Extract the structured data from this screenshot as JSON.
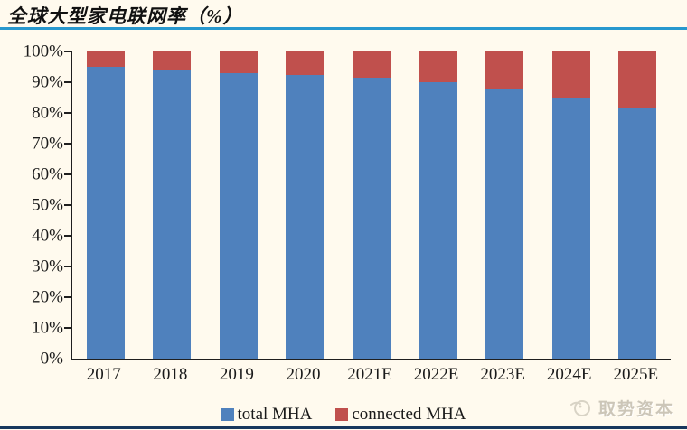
{
  "page": {
    "title": "全球大型家电联网率（%）",
    "watermark_text": "取势资本"
  },
  "colors": {
    "total_mha": "#4F81BD",
    "connected_mha": "#C0504D",
    "background": "#FFFAEE",
    "title_underline": "#2898CE",
    "bottom_border": "#17375D",
    "axis": "#1F1F1F"
  },
  "chart_data": {
    "type": "bar",
    "stacked": true,
    "title": "全球大型家电联网率（%）",
    "categories": [
      "2017",
      "2018",
      "2019",
      "2020",
      "2021E",
      "2022E",
      "2023E",
      "2024E",
      "2025E"
    ],
    "series": [
      {
        "name": "total MHA",
        "color": "#4F81BD",
        "values": [
          95,
          94,
          93,
          92.5,
          91.5,
          90,
          88,
          85,
          81.5
        ]
      },
      {
        "name": "connected MHA",
        "color": "#C0504D",
        "values": [
          5,
          6,
          7,
          7.5,
          8.5,
          10,
          12,
          15,
          18.5
        ]
      }
    ],
    "xlabel": "",
    "ylabel": "",
    "ylim": [
      0,
      100
    ],
    "yticks": [
      "0%",
      "10%",
      "20%",
      "30%",
      "40%",
      "50%",
      "60%",
      "70%",
      "80%",
      "90%",
      "100%"
    ],
    "grid": false,
    "legend_position": "bottom"
  }
}
